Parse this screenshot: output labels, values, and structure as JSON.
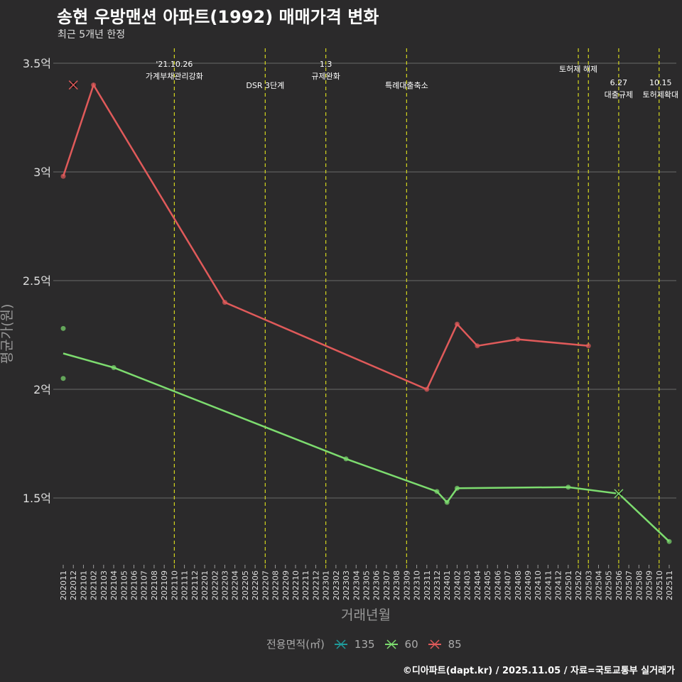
{
  "title": "송현 우방맨션 아파트(1992) 매매가격 변화",
  "subtitle": "최근 5개년 한정",
  "footer": "©디아파트(dapt.kr) / 2025.11.05 / 자료=국토교통부 실거래가",
  "colors": {
    "background": "#2b2a2b",
    "grid": "#555555",
    "event_line": "#d4d61e",
    "s135": "#1f9a9a",
    "s60": "#7ddc6f",
    "s85": "#e05a5a"
  },
  "chart_data": {
    "type": "line",
    "title": "송현 우방맨션 아파트(1992) 매매가격 변화",
    "xlabel": "거래년월",
    "ylabel": "평균가(원)",
    "x": [
      "202011",
      "202012",
      "202101",
      "202102",
      "202103",
      "202104",
      "202105",
      "202106",
      "202107",
      "202108",
      "202109",
      "202110",
      "202111",
      "202112",
      "202201",
      "202202",
      "202203",
      "202204",
      "202205",
      "202206",
      "202207",
      "202208",
      "202209",
      "202210",
      "202211",
      "202212",
      "202301",
      "202302",
      "202303",
      "202304",
      "202305",
      "202306",
      "202307",
      "202308",
      "202309",
      "202310",
      "202311",
      "202312",
      "202401",
      "202402",
      "202403",
      "202404",
      "202405",
      "202406",
      "202407",
      "202408",
      "202409",
      "202410",
      "202411",
      "202412",
      "202501",
      "202502",
      "202503",
      "202504",
      "202505",
      "202506",
      "202507",
      "202508",
      "202509",
      "202510",
      "202511"
    ],
    "ylim": [
      1.2,
      3.55
    ],
    "yticks": [
      1.5,
      2,
      2.5,
      3,
      3.5
    ],
    "ytick_labels": [
      "1.5억",
      "2억",
      "2.5억",
      "3억",
      "3.5억"
    ],
    "grid": true,
    "legend": {
      "title": "전용면적(㎡)",
      "position": "bottom",
      "entries": [
        "135",
        "60",
        "85"
      ]
    },
    "series": [
      {
        "name": "135",
        "line": [],
        "points": [],
        "crosses": []
      },
      {
        "name": "60",
        "line": [
          [
            "202011",
            2.165
          ],
          [
            "202104",
            2.1
          ],
          [
            "202303",
            1.68
          ],
          [
            "202312",
            1.53
          ],
          [
            "202401",
            1.48
          ],
          [
            "202402",
            1.545
          ],
          [
            "202501",
            1.55
          ],
          [
            "202506",
            1.52
          ],
          [
            "202511",
            1.3
          ]
        ],
        "points": [
          [
            "202011",
            2.28
          ],
          [
            "202011",
            2.05
          ],
          [
            "202104",
            2.1
          ],
          [
            "202303",
            1.68
          ],
          [
            "202312",
            1.53
          ],
          [
            "202401",
            1.48
          ],
          [
            "202402",
            1.545
          ],
          [
            "202501",
            1.55
          ],
          [
            "202511",
            1.3
          ]
        ],
        "crosses": [
          [
            "202506",
            1.52
          ]
        ]
      },
      {
        "name": "85",
        "line": [
          [
            "202011",
            2.98
          ],
          [
            "202102",
            3.4
          ],
          [
            "202203",
            2.4
          ],
          [
            "202311",
            2.0
          ],
          [
            "202402",
            2.3
          ],
          [
            "202404",
            2.2
          ],
          [
            "202408",
            2.23
          ],
          [
            "202503",
            2.2
          ]
        ],
        "points": [
          [
            "202011",
            2.98
          ],
          [
            "202102",
            3.4
          ],
          [
            "202203",
            2.4
          ],
          [
            "202311",
            2.0
          ],
          [
            "202402",
            2.3
          ],
          [
            "202404",
            2.2
          ],
          [
            "202408",
            2.23
          ],
          [
            "202503",
            2.2
          ]
        ],
        "crosses": [
          [
            "202012",
            3.4
          ]
        ]
      }
    ],
    "events": [
      {
        "month": "202110",
        "label": [
          "'21.10.26",
          "가계부채관리강화"
        ]
      },
      {
        "month": "202207",
        "label": [
          "DSR 3단계"
        ]
      },
      {
        "month": "202301",
        "label": [
          "1.3",
          "규제완화"
        ]
      },
      {
        "month": "202309",
        "label": [
          "특례대출축소"
        ]
      },
      {
        "month": "202502",
        "label": [
          "토허제 해제"
        ]
      },
      {
        "month": "202503",
        "label": []
      },
      {
        "month": "202506",
        "label": [
          "6.27",
          "대출규제"
        ]
      },
      {
        "month": "202510",
        "label": [
          "10.15",
          "토허제확대"
        ]
      }
    ]
  }
}
